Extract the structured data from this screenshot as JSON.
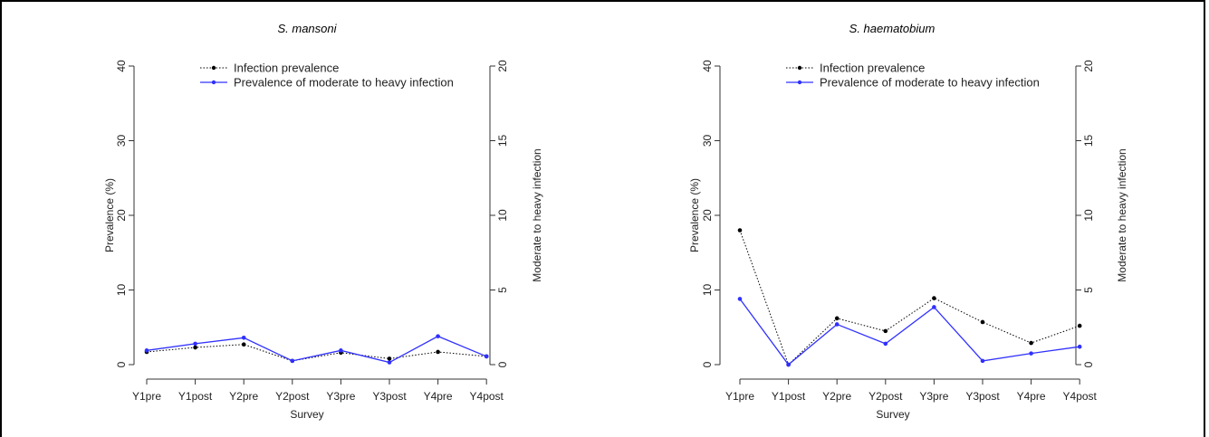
{
  "chart_data": [
    {
      "type": "line",
      "title": "S. mansoni",
      "xlabel": "Survey",
      "ylabel": "Prevalence (%)",
      "y2label": "Moderate to heavy infection",
      "categories": [
        "Y1pre",
        "Y1post",
        "Y2pre",
        "Y2post",
        "Y3pre",
        "Y3post",
        "Y4pre",
        "Y4post"
      ],
      "ylim": [
        0,
        40
      ],
      "yticks": [
        0,
        10,
        20,
        30,
        40
      ],
      "y2lim": [
        0,
        20
      ],
      "y2ticks": [
        0,
        5,
        10,
        15,
        20
      ],
      "legend_position": "top-center",
      "series": [
        {
          "name": "Infection prevalence",
          "axis": "left",
          "color": "#000000",
          "line_style": "dotted",
          "values": [
            1.7,
            2.3,
            2.7,
            0.5,
            1.6,
            0.8,
            1.7,
            1.1
          ]
        },
        {
          "name": "Prevalence of moderate to heavy infection",
          "axis": "right",
          "color": "#3030ff",
          "line_style": "solid",
          "values": [
            0.95,
            1.4,
            1.8,
            0.25,
            0.95,
            0.15,
            1.9,
            0.55
          ]
        }
      ]
    },
    {
      "type": "line",
      "title": "S. haematobium",
      "xlabel": "Survey",
      "ylabel": "Prevalence (%)",
      "y2label": "Moderate to heavy infection",
      "categories": [
        "Y1pre",
        "Y1post",
        "Y2pre",
        "Y2post",
        "Y3pre",
        "Y3post",
        "Y4pre",
        "Y4post"
      ],
      "ylim": [
        0,
        40
      ],
      "yticks": [
        0,
        10,
        20,
        30,
        40
      ],
      "y2lim": [
        0,
        20
      ],
      "y2ticks": [
        0,
        5,
        10,
        15,
        20
      ],
      "legend_position": "top-center",
      "series": [
        {
          "name": "Infection prevalence",
          "axis": "left",
          "color": "#000000",
          "line_style": "dotted",
          "values": [
            18.0,
            0.0,
            6.2,
            4.5,
            8.9,
            5.7,
            2.9,
            5.2
          ]
        },
        {
          "name": "Prevalence of moderate to heavy infection",
          "axis": "right",
          "color": "#3030ff",
          "line_style": "solid",
          "values": [
            4.4,
            0.0,
            2.7,
            1.4,
            3.85,
            0.25,
            0.75,
            1.2
          ]
        }
      ]
    }
  ]
}
